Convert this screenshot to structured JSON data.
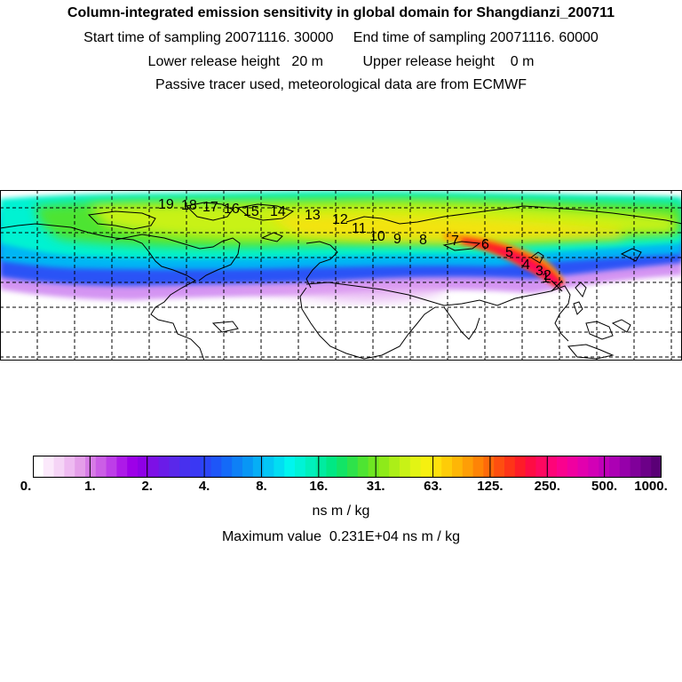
{
  "header": {
    "title": "Column-integrated emission sensitivity in global domain for Shangdianzi_200711",
    "sampling_line": "Start time of sampling 20071116. 30000     End time of sampling 20071116. 60000",
    "release_line": "Lower release height   20 m          Upper release height    0 m",
    "tracer_line": "Passive tracer used, meteorological data are from ECMWF"
  },
  "map": {
    "trajectory_labels": [
      "19",
      "18",
      "17",
      "16",
      "15",
      "14",
      "13",
      "12",
      "11",
      "10",
      "9",
      "8",
      "7",
      "6",
      "5",
      "4",
      "3",
      "2",
      "1"
    ],
    "receptor_marker": "x"
  },
  "colorbar": {
    "tick_labels": [
      "0.",
      "1.",
      "2.",
      "4.",
      "8.",
      "16.",
      "31.",
      "63.",
      "125.",
      "250.",
      "500.",
      "1000."
    ],
    "colors": [
      "#ffffff",
      "#fbe9fb",
      "#f5d4f6",
      "#eebaf1",
      "#e49ee9",
      "#d77ce6",
      "#cb5ee6",
      "#bd3ee8",
      "#ad1ae8",
      "#9d00e8",
      "#8e00e6",
      "#7d10e6",
      "#6a1ce8",
      "#5a28ea",
      "#4830ee",
      "#3a38f3",
      "#2b45f6",
      "#1e56f8",
      "#146af8",
      "#0e80f6",
      "#0896f5",
      "#06aef5",
      "#04c6f4",
      "#02ddf2",
      "#00f5ee",
      "#00f3d6",
      "#00f0bc",
      "#00eca0",
      "#00e884",
      "#12e466",
      "#2ee24a",
      "#4ee432",
      "#6ee622",
      "#8eea1a",
      "#acee18",
      "#c8f216",
      "#e2f414",
      "#f6f010",
      "#fee00c",
      "#fecc08",
      "#feb606",
      "#fe9e06",
      "#fe8406",
      "#fe6a0a",
      "#fe4e10",
      "#fe3418",
      "#fe1c28",
      "#fe0c44",
      "#fe0860",
      "#fe0478",
      "#fa028e",
      "#f000a0",
      "#e200ae",
      "#d200b6",
      "#c000b8",
      "#ac00b4",
      "#9600aa",
      "#80009a",
      "#6c0088",
      "#5a0076"
    ],
    "unit": "ns m / kg",
    "max_line": "Maximum value  0.231E+04 ns m / kg"
  }
}
